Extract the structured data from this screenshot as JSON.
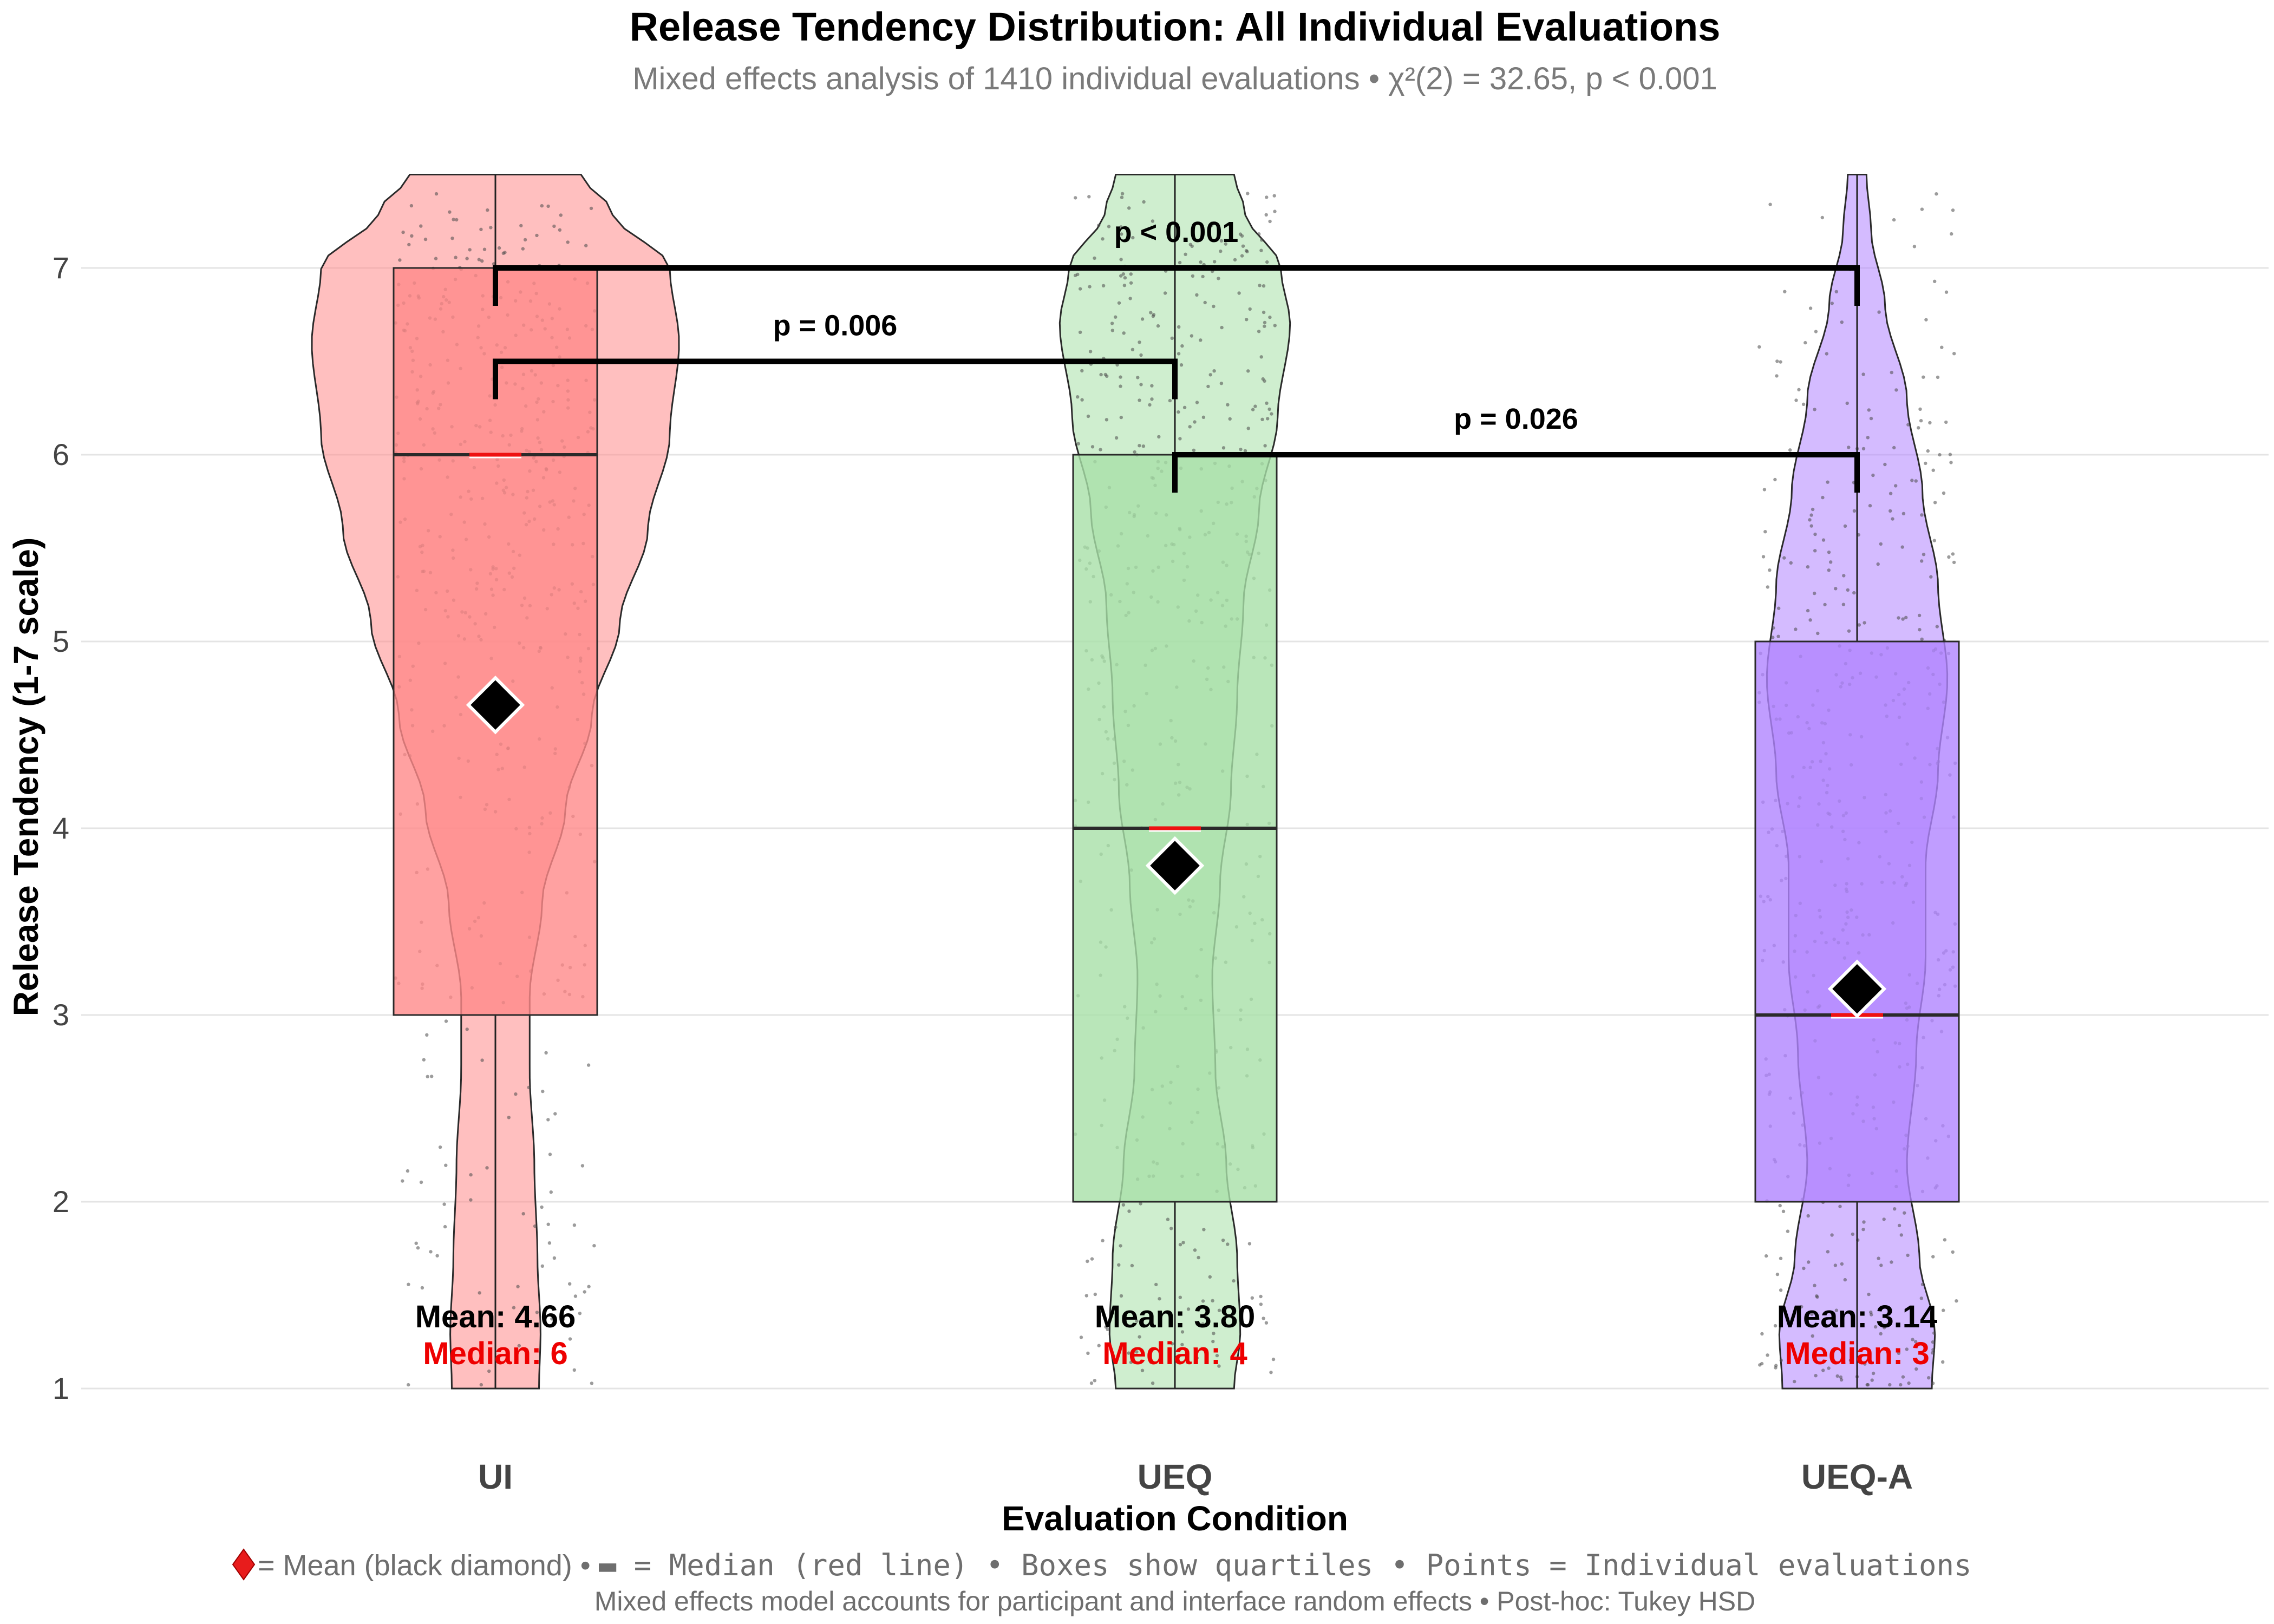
{
  "chart_data": {
    "type": "violin",
    "title": "Release Tendency Distribution: All Individual Evaluations",
    "subtitle": "Mixed effects analysis of 1410 individual evaluations • χ²(2) = 32.65, p < 0.001",
    "xlabel": "Evaluation Condition",
    "ylabel": "Release Tendency (1-7 scale)",
    "ylim": [
      1,
      7.5
    ],
    "yticks": [
      "1",
      "2",
      "3",
      "4",
      "5",
      "6",
      "7"
    ],
    "grid": true,
    "categories": [
      "UI",
      "UEQ",
      "UEQ-A"
    ],
    "colors": [
      "#FF8A8A",
      "#A8E0A8",
      "#B084FF"
    ],
    "series": [
      {
        "category": "UI",
        "mean": 4.66,
        "median": 6,
        "q1": 3,
        "q3": 7,
        "min": 1,
        "max": 7.5,
        "mean_label": "Mean: 4.66",
        "median_label": "Median: 6",
        "density": [
          [
            1.0,
            0.28
          ],
          [
            1.3,
            0.29
          ],
          [
            1.7,
            0.27
          ],
          [
            2.2,
            0.25
          ],
          [
            2.7,
            0.22
          ],
          [
            3.1,
            0.22
          ],
          [
            3.6,
            0.3
          ],
          [
            4.1,
            0.45
          ],
          [
            4.6,
            0.62
          ],
          [
            5.1,
            0.8
          ],
          [
            5.6,
            0.98
          ],
          [
            6.1,
            1.12
          ],
          [
            6.6,
            1.18
          ],
          [
            7.0,
            1.12
          ],
          [
            7.3,
            0.75
          ],
          [
            7.5,
            0.55
          ]
        ]
      },
      {
        "category": "UEQ",
        "mean": 3.8,
        "median": 4,
        "q1": 2,
        "q3": 6,
        "min": 1,
        "max": 7.5,
        "mean_label": "Mean: 3.80",
        "median_label": "Median: 4",
        "density": [
          [
            1.0,
            0.38
          ],
          [
            1.3,
            0.42
          ],
          [
            1.7,
            0.4
          ],
          [
            2.2,
            0.33
          ],
          [
            2.7,
            0.26
          ],
          [
            3.2,
            0.24
          ],
          [
            3.7,
            0.29
          ],
          [
            4.2,
            0.36
          ],
          [
            4.7,
            0.4
          ],
          [
            5.2,
            0.44
          ],
          [
            5.7,
            0.54
          ],
          [
            6.2,
            0.66
          ],
          [
            6.7,
            0.74
          ],
          [
            7.0,
            0.68
          ],
          [
            7.3,
            0.45
          ],
          [
            7.5,
            0.38
          ]
        ]
      },
      {
        "category": "UEQ-A",
        "mean": 3.14,
        "median": 3,
        "q1": 2,
        "q3": 5,
        "min": 1,
        "max": 7.5,
        "mean_label": "Mean: 3.14",
        "median_label": "Median: 3",
        "density": [
          [
            1.0,
            0.48
          ],
          [
            1.3,
            0.5
          ],
          [
            1.7,
            0.4
          ],
          [
            2.2,
            0.32
          ],
          [
            2.8,
            0.38
          ],
          [
            3.3,
            0.44
          ],
          [
            3.8,
            0.44
          ],
          [
            4.3,
            0.52
          ],
          [
            4.8,
            0.58
          ],
          [
            5.3,
            0.52
          ],
          [
            5.8,
            0.42
          ],
          [
            6.3,
            0.32
          ],
          [
            6.8,
            0.18
          ],
          [
            7.2,
            0.09
          ],
          [
            7.5,
            0.06
          ]
        ]
      }
    ],
    "comparisons": [
      {
        "from": "UI",
        "to": "UEQ-A",
        "y": 7.0,
        "label": "p < 0.001"
      },
      {
        "from": "UI",
        "to": "UEQ",
        "y": 6.5,
        "label": "p = 0.006"
      },
      {
        "from": "UEQ",
        "to": "UEQ-A",
        "y": 6.0,
        "label": "p = 0.026"
      }
    ],
    "caption_line1": {
      "part1": " = Mean (black diamond) • ",
      "part2": " = Median (red line) • Boxes show quartiles • Points = Individual evaluations"
    },
    "caption_line2": "Mixed effects model accounts for participant and interface random effects • Post-hoc: Tukey HSD"
  }
}
